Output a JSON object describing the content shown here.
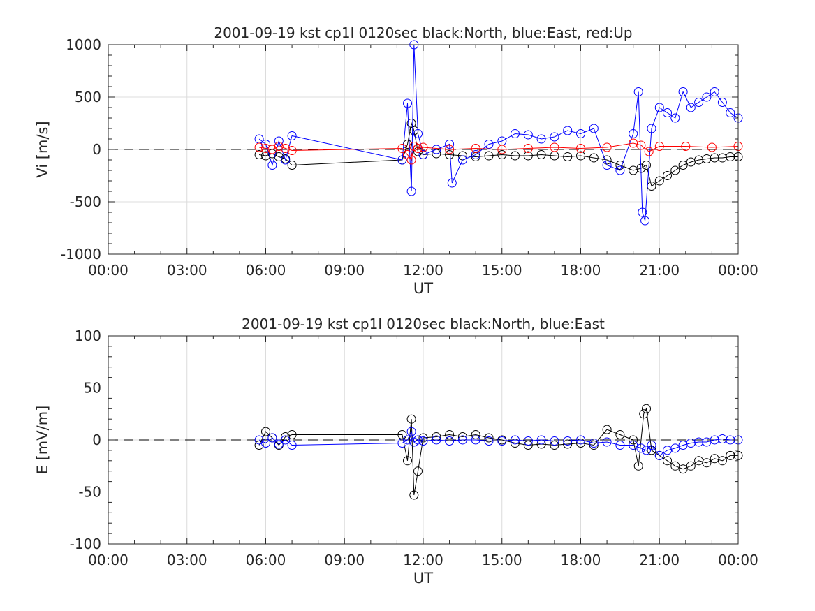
{
  "chart_data": [
    {
      "type": "scatter",
      "title": "2001-09-19 kst cp1l 0120sec black:North, blue:East, red:Up",
      "xlabel": "UT",
      "ylabel": "Vi [m/s]",
      "xticklabels": [
        "00:00",
        "03:00",
        "06:00",
        "09:00",
        "12:00",
        "15:00",
        "18:00",
        "21:00",
        "00:00"
      ],
      "xlim_hours": [
        0,
        24
      ],
      "ylim": [
        -1000,
        1000
      ],
      "yticks": [
        -1000,
        -500,
        0,
        500,
        1000
      ],
      "yticklabels": [
        "-1000",
        "-500",
        "0",
        "500",
        "1000"
      ],
      "grid": true,
      "zero_line": "dashed",
      "marker": "circle",
      "series": [
        {
          "name": "North",
          "color": "#000000",
          "x_hours": [
            5.75,
            6.0,
            6.25,
            6.5,
            6.75,
            7.0,
            11.2,
            11.4,
            11.55,
            11.65,
            11.8,
            12.0,
            12.5,
            13.0,
            13.5,
            14.0,
            14.5,
            15.0,
            15.5,
            16.0,
            16.5,
            17.0,
            17.5,
            18.0,
            18.5,
            19.0,
            19.5,
            20.0,
            20.3,
            20.5,
            20.7,
            21.0,
            21.3,
            21.6,
            21.9,
            22.2,
            22.5,
            22.8,
            23.1,
            23.4,
            23.7,
            24.0
          ],
          "y": [
            -50,
            -60,
            -40,
            -70,
            -90,
            -150,
            -100,
            50,
            250,
            180,
            -20,
            -50,
            -40,
            -50,
            -60,
            -70,
            -60,
            -50,
            -60,
            -60,
            -50,
            -60,
            -70,
            -60,
            -80,
            -100,
            -150,
            -200,
            -180,
            -150,
            -350,
            -300,
            -250,
            -200,
            -150,
            -120,
            -100,
            -90,
            -80,
            -80,
            -70,
            -70
          ]
        },
        {
          "name": "East",
          "color": "#0000ff",
          "x_hours": [
            5.75,
            6.0,
            6.25,
            6.5,
            6.75,
            7.0,
            11.2,
            11.4,
            11.55,
            11.65,
            11.8,
            12.0,
            12.5,
            13.0,
            13.1,
            13.5,
            14.0,
            14.5,
            15.0,
            15.5,
            16.0,
            16.5,
            17.0,
            17.5,
            18.0,
            18.5,
            19.0,
            19.5,
            20.0,
            20.2,
            20.35,
            20.45,
            20.7,
            21.0,
            21.3,
            21.6,
            21.9,
            22.2,
            22.5,
            22.8,
            23.1,
            23.4,
            23.7,
            24.0
          ],
          "y": [
            100,
            50,
            -150,
            80,
            -100,
            130,
            -100,
            440,
            -400,
            1000,
            150,
            -50,
            0,
            50,
            -320,
            -100,
            -50,
            50,
            80,
            150,
            140,
            100,
            120,
            180,
            150,
            200,
            -150,
            -200,
            150,
            550,
            -600,
            -680,
            200,
            400,
            350,
            300,
            550,
            400,
            450,
            500,
            550,
            450,
            350,
            300
          ]
        },
        {
          "name": "Up",
          "color": "#ff0000",
          "x_hours": [
            5.75,
            6.0,
            6.25,
            6.5,
            6.75,
            7.0,
            11.2,
            11.4,
            11.55,
            11.65,
            11.8,
            12.0,
            13.0,
            14.0,
            15.0,
            16.0,
            17.0,
            18.0,
            19.0,
            20.0,
            20.3,
            20.6,
            21.0,
            22.0,
            23.0,
            24.0
          ],
          "y": [
            20,
            10,
            0,
            30,
            10,
            -10,
            10,
            -50,
            -100,
            30,
            10,
            20,
            0,
            10,
            0,
            10,
            20,
            10,
            20,
            60,
            40,
            -20,
            30,
            30,
            20,
            30
          ]
        }
      ]
    },
    {
      "type": "scatter",
      "title": "2001-09-19 kst cp1l 0120sec black:North, blue:East",
      "xlabel": "UT",
      "ylabel": "E [mV/m]",
      "xticklabels": [
        "00:00",
        "03:00",
        "06:00",
        "09:00",
        "12:00",
        "15:00",
        "18:00",
        "21:00",
        "00:00"
      ],
      "xlim_hours": [
        0,
        24
      ],
      "ylim": [
        -100,
        100
      ],
      "yticks": [
        -100,
        -50,
        0,
        50,
        100
      ],
      "yticklabels": [
        "-100",
        "-50",
        "0",
        "50",
        "100"
      ],
      "grid": true,
      "zero_line": "dashed",
      "marker": "circle",
      "series": [
        {
          "name": "North",
          "color": "#000000",
          "x_hours": [
            5.75,
            6.0,
            6.25,
            6.5,
            6.75,
            7.0,
            11.2,
            11.4,
            11.55,
            11.65,
            11.8,
            12.0,
            12.5,
            13.0,
            13.5,
            14.0,
            14.5,
            15.0,
            15.5,
            16.0,
            16.5,
            17.0,
            17.5,
            18.0,
            18.5,
            19.0,
            19.5,
            20.0,
            20.2,
            20.4,
            20.5,
            20.7,
            21.0,
            21.3,
            21.6,
            21.9,
            22.2,
            22.5,
            22.8,
            23.1,
            23.4,
            23.7,
            24.0
          ],
          "y": [
            -5,
            8,
            2,
            -5,
            3,
            5,
            5,
            -20,
            20,
            -53,
            -30,
            2,
            3,
            5,
            3,
            5,
            2,
            0,
            -3,
            -5,
            -4,
            -5,
            -4,
            -3,
            -5,
            10,
            5,
            0,
            -25,
            25,
            30,
            -10,
            -15,
            -20,
            -25,
            -28,
            -25,
            -20,
            -22,
            -18,
            -20,
            -15,
            -15
          ]
        },
        {
          "name": "East",
          "color": "#0000ff",
          "x_hours": [
            5.75,
            6.0,
            6.25,
            6.5,
            6.75,
            7.0,
            11.2,
            11.4,
            11.55,
            11.65,
            11.8,
            12.0,
            12.5,
            13.0,
            13.5,
            14.0,
            14.5,
            15.0,
            15.5,
            16.0,
            16.5,
            17.0,
            17.5,
            18.0,
            18.5,
            19.0,
            19.5,
            20.0,
            20.3,
            20.5,
            20.7,
            21.0,
            21.3,
            21.6,
            21.9,
            22.2,
            22.5,
            22.8,
            23.1,
            23.4,
            23.7,
            24.0
          ],
          "y": [
            0,
            -3,
            2,
            -4,
            0,
            -5,
            -3,
            0,
            8,
            -2,
            0,
            -1,
            0,
            -1,
            0,
            0,
            -1,
            -1,
            0,
            -1,
            0,
            -1,
            -1,
            0,
            -3,
            -2,
            -5,
            -5,
            -8,
            -10,
            -5,
            -15,
            -10,
            -8,
            -5,
            -3,
            -2,
            -2,
            0,
            1,
            0,
            0
          ]
        }
      ]
    }
  ]
}
